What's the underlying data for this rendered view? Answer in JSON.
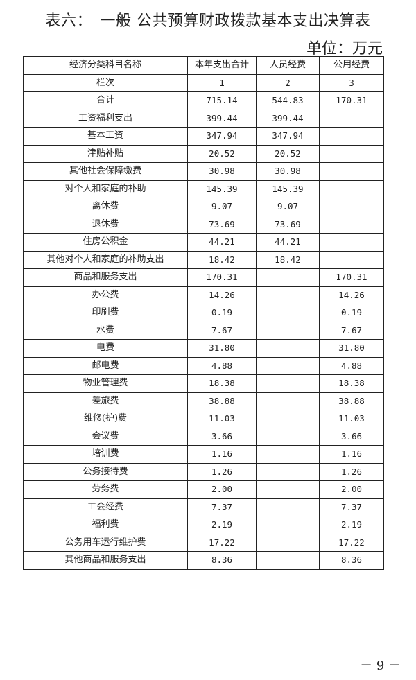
{
  "title": "表六：　一般 公共预算财政拨款基本支出决算表",
  "unit": "单位：万元",
  "table": {
    "headers": [
      "经济分类科目名称",
      "本年支出合计",
      "人员经费",
      "公用经费"
    ],
    "rows": [
      [
        "栏次",
        "1",
        "2",
        "3"
      ],
      [
        "合计",
        "715.14",
        "544.83",
        "170.31"
      ],
      [
        "工资福利支出",
        "399.44",
        "399.44",
        ""
      ],
      [
        "基本工资",
        "347.94",
        "347.94",
        ""
      ],
      [
        "津贴补贴",
        "20.52",
        "20.52",
        ""
      ],
      [
        "其他社会保障缴费",
        "30.98",
        "30.98",
        ""
      ],
      [
        "对个人和家庭的补助",
        "145.39",
        "145.39",
        ""
      ],
      [
        "离休费",
        "9.07",
        "9.07",
        ""
      ],
      [
        "退休费",
        "73.69",
        "73.69",
        ""
      ],
      [
        "住房公积金",
        "44.21",
        "44.21",
        ""
      ],
      [
        "其他对个人和家庭的补助支出",
        "18.42",
        "18.42",
        ""
      ],
      [
        "商品和服务支出",
        "170.31",
        "",
        "170.31"
      ],
      [
        "办公费",
        "14.26",
        "",
        "14.26"
      ],
      [
        "印刷费",
        "0.19",
        "",
        "0.19"
      ],
      [
        "水费",
        "7.67",
        "",
        "7.67"
      ],
      [
        "电费",
        "31.80",
        "",
        "31.80"
      ],
      [
        "邮电费",
        "4.88",
        "",
        "4.88"
      ],
      [
        "物业管理费",
        "18.38",
        "",
        "18.38"
      ],
      [
        "差旅费",
        "38.88",
        "",
        "38.88"
      ],
      [
        "维修(护)费",
        "11.03",
        "",
        "11.03"
      ],
      [
        "会议费",
        "3.66",
        "",
        "3.66"
      ],
      [
        "培训费",
        "1.16",
        "",
        "1.16"
      ],
      [
        "公务接待费",
        "1.26",
        "",
        "1.26"
      ],
      [
        "劳务费",
        "2.00",
        "",
        "2.00"
      ],
      [
        "工会经费",
        "7.37",
        "",
        "7.37"
      ],
      [
        "福利费",
        "2.19",
        "",
        "2.19"
      ],
      [
        "公务用车运行维护费",
        "17.22",
        "",
        "17.22"
      ],
      [
        "其他商品和服务支出",
        "8.36",
        "",
        "8.36"
      ]
    ]
  },
  "page_number": "－ 9 －"
}
